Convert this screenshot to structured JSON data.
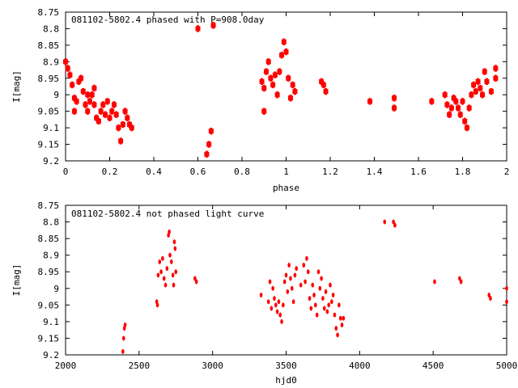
{
  "chart_data": [
    {
      "type": "scatter",
      "title": "081102-5802.4 phased with P=908.0day",
      "xlabel": "phase",
      "ylabel": "I[mag]",
      "xlim": [
        0,
        2
      ],
      "ylim": [
        8.75,
        9.2
      ],
      "y_inverted": true,
      "xticks": [
        0,
        0.2,
        0.4,
        0.6,
        0.8,
        1,
        1.2,
        1.4,
        1.6,
        1.8,
        2
      ],
      "xtick_labels": [
        "0",
        "0.2",
        "0.4",
        "0.6",
        "0.8",
        "1",
        "1.2",
        "1.4",
        "1.6",
        "1.8",
        "2"
      ],
      "yticks": [
        8.75,
        8.8,
        8.85,
        8.9,
        8.95,
        9,
        9.05,
        9.1,
        9.15,
        9.2
      ],
      "ytick_labels": [
        "8.75",
        "8.8",
        "8.85",
        "8.9",
        "8.95",
        "9",
        "9.05",
        "9.1",
        "9.15",
        "9.2"
      ],
      "grid": false,
      "marker_color": "#ff0000",
      "points": [
        [
          0.0,
          8.9
        ],
        [
          0.01,
          8.92
        ],
        [
          0.02,
          8.94
        ],
        [
          0.03,
          8.97
        ],
        [
          0.04,
          9.01
        ],
        [
          0.04,
          9.05
        ],
        [
          0.05,
          9.02
        ],
        [
          0.06,
          8.96
        ],
        [
          0.07,
          8.95
        ],
        [
          0.08,
          8.99
        ],
        [
          0.09,
          9.03
        ],
        [
          0.1,
          9.05
        ],
        [
          0.1,
          9.0
        ],
        [
          0.11,
          9.02
        ],
        [
          0.12,
          9.0
        ],
        [
          0.13,
          8.98
        ],
        [
          0.13,
          9.03
        ],
        [
          0.14,
          9.07
        ],
        [
          0.15,
          9.08
        ],
        [
          0.16,
          9.05
        ],
        [
          0.17,
          9.03
        ],
        [
          0.18,
          9.06
        ],
        [
          0.19,
          9.02
        ],
        [
          0.2,
          9.07
        ],
        [
          0.21,
          9.05
        ],
        [
          0.22,
          9.03
        ],
        [
          0.23,
          9.06
        ],
        [
          0.24,
          9.1
        ],
        [
          0.25,
          9.14
        ],
        [
          0.26,
          9.09
        ],
        [
          0.27,
          9.05
        ],
        [
          0.28,
          9.07
        ],
        [
          0.29,
          9.09
        ],
        [
          0.3,
          9.1
        ],
        [
          0.6,
          8.8
        ],
        [
          0.64,
          9.18
        ],
        [
          0.65,
          9.15
        ],
        [
          0.66,
          9.11
        ],
        [
          0.67,
          8.79
        ],
        [
          0.89,
          8.96
        ],
        [
          0.9,
          8.98
        ],
        [
          0.9,
          9.05
        ],
        [
          0.91,
          8.93
        ],
        [
          0.92,
          8.9
        ],
        [
          0.93,
          8.95
        ],
        [
          0.94,
          8.97
        ],
        [
          0.95,
          8.94
        ],
        [
          0.96,
          9.0
        ],
        [
          0.97,
          8.93
        ],
        [
          0.98,
          8.88
        ],
        [
          0.99,
          8.84
        ],
        [
          1.0,
          8.87
        ],
        [
          1.01,
          8.95
        ],
        [
          1.02,
          9.01
        ],
        [
          1.03,
          8.97
        ],
        [
          1.04,
          8.99
        ],
        [
          1.16,
          8.96
        ],
        [
          1.17,
          8.97
        ],
        [
          1.18,
          8.99
        ],
        [
          1.38,
          9.02
        ],
        [
          1.49,
          9.01
        ],
        [
          1.49,
          9.04
        ],
        [
          1.66,
          9.02
        ],
        [
          1.72,
          9.0
        ],
        [
          1.73,
          9.03
        ],
        [
          1.74,
          9.06
        ],
        [
          1.75,
          9.04
        ],
        [
          1.76,
          9.01
        ],
        [
          1.77,
          9.02
        ],
        [
          1.78,
          9.04
        ],
        [
          1.79,
          9.06
        ],
        [
          1.8,
          9.02
        ],
        [
          1.81,
          9.08
        ],
        [
          1.82,
          9.1
        ],
        [
          1.83,
          9.04
        ],
        [
          1.84,
          9.0
        ],
        [
          1.85,
          8.97
        ],
        [
          1.86,
          8.99
        ],
        [
          1.87,
          8.96
        ],
        [
          1.88,
          8.98
        ],
        [
          1.89,
          9.0
        ],
        [
          1.9,
          8.93
        ],
        [
          1.91,
          8.96
        ],
        [
          1.93,
          8.99
        ],
        [
          1.95,
          8.92
        ],
        [
          1.95,
          8.95
        ]
      ]
    },
    {
      "type": "scatter",
      "title": "081102-5802.4 not phased light curve",
      "xlabel": "hjd0",
      "ylabel": "I[mag]",
      "xlim": [
        2000,
        5000
      ],
      "ylim": [
        8.75,
        9.2
      ],
      "y_inverted": true,
      "xticks": [
        2000,
        2500,
        3000,
        3500,
        4000,
        4500,
        5000
      ],
      "xtick_labels": [
        "2000",
        "2500",
        "3000",
        "3500",
        "4000",
        "4500",
        "5000"
      ],
      "yticks": [
        8.75,
        8.8,
        8.85,
        8.9,
        8.95,
        9,
        9.05,
        9.1,
        9.15,
        9.2
      ],
      "ytick_labels": [
        "8.75",
        "8.8",
        "8.85",
        "8.9",
        "8.95",
        "9",
        "9.05",
        "9.1",
        "9.15",
        "9.2"
      ],
      "grid": false,
      "marker_color": "#ff0000",
      "points": [
        [
          2390,
          9.19
        ],
        [
          2395,
          9.15
        ],
        [
          2400,
          9.12
        ],
        [
          2405,
          9.11
        ],
        [
          2620,
          9.04
        ],
        [
          2625,
          9.05
        ],
        [
          2630,
          8.96
        ],
        [
          2640,
          8.92
        ],
        [
          2650,
          8.95
        ],
        [
          2660,
          8.91
        ],
        [
          2670,
          8.97
        ],
        [
          2680,
          8.99
        ],
        [
          2690,
          8.94
        ],
        [
          2700,
          8.84
        ],
        [
          2705,
          8.83
        ],
        [
          2710,
          8.9
        ],
        [
          2720,
          8.92
        ],
        [
          2730,
          8.96
        ],
        [
          2735,
          8.99
        ],
        [
          2740,
          8.86
        ],
        [
          2745,
          8.88
        ],
        [
          2750,
          8.95
        ],
        [
          2880,
          8.97
        ],
        [
          2890,
          8.98
        ],
        [
          3330,
          9.02
        ],
        [
          3380,
          9.04
        ],
        [
          3390,
          8.98
        ],
        [
          3400,
          9.06
        ],
        [
          3410,
          9.0
        ],
        [
          3420,
          9.03
        ],
        [
          3430,
          9.05
        ],
        [
          3440,
          9.07
        ],
        [
          3450,
          9.04
        ],
        [
          3460,
          9.08
        ],
        [
          3470,
          9.1
        ],
        [
          3480,
          9.05
        ],
        [
          3490,
          8.98
        ],
        [
          3500,
          8.96
        ],
        [
          3510,
          9.01
        ],
        [
          3520,
          8.93
        ],
        [
          3530,
          8.97
        ],
        [
          3540,
          9.0
        ],
        [
          3550,
          9.04
        ],
        [
          3560,
          8.96
        ],
        [
          3570,
          8.94
        ],
        [
          3600,
          8.99
        ],
        [
          3620,
          8.93
        ],
        [
          3630,
          8.98
        ],
        [
          3640,
          8.91
        ],
        [
          3650,
          8.95
        ],
        [
          3660,
          9.03
        ],
        [
          3670,
          9.06
        ],
        [
          3680,
          8.99
        ],
        [
          3690,
          9.02
        ],
        [
          3700,
          9.05
        ],
        [
          3710,
          9.08
        ],
        [
          3720,
          8.95
        ],
        [
          3730,
          9.0
        ],
        [
          3740,
          8.97
        ],
        [
          3750,
          9.03
        ],
        [
          3760,
          9.06
        ],
        [
          3770,
          9.01
        ],
        [
          3780,
          9.07
        ],
        [
          3790,
          9.05
        ],
        [
          3800,
          8.99
        ],
        [
          3810,
          9.04
        ],
        [
          3820,
          9.02
        ],
        [
          3830,
          9.08
        ],
        [
          3840,
          9.12
        ],
        [
          3850,
          9.14
        ],
        [
          3860,
          9.05
        ],
        [
          3870,
          9.09
        ],
        [
          3880,
          9.11
        ],
        [
          3890,
          9.09
        ],
        [
          4170,
          8.8
        ],
        [
          4230,
          8.8
        ],
        [
          4240,
          8.81
        ],
        [
          4510,
          8.98
        ],
        [
          4680,
          8.97
        ],
        [
          4690,
          8.98
        ],
        [
          4880,
          9.02
        ],
        [
          4890,
          9.03
        ],
        [
          5000,
          9.0
        ],
        [
          5000,
          9.04
        ]
      ]
    }
  ]
}
